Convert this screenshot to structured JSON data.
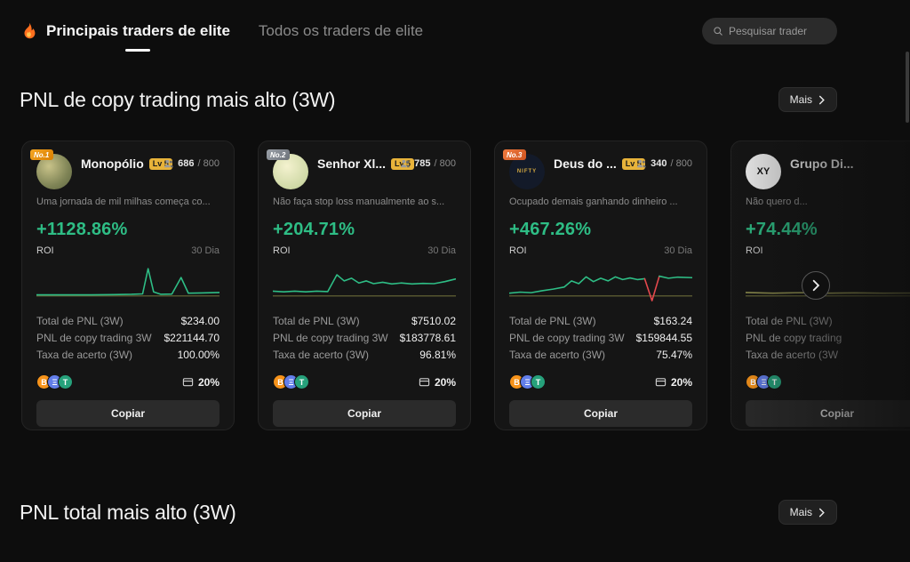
{
  "header": {
    "tabs": [
      {
        "label": "Principais traders de elite",
        "active": true
      },
      {
        "label": "Todos os traders de elite",
        "active": false
      }
    ],
    "search_placeholder": "Pesquisar trader"
  },
  "sections": {
    "top": {
      "title": "PNL de copy trading mais alto (3W)",
      "more": "Mais"
    },
    "bottom": {
      "title": "PNL total mais alto (3W)",
      "more": "Mais"
    }
  },
  "colors": {
    "green": "#2ebd85",
    "red": "#e5484d",
    "gold": "#e8b33a",
    "btc": "#f7931a",
    "eth": "#627eea",
    "usdt": "#26a17b"
  },
  "coins": [
    {
      "name": "btc",
      "symbol": "B"
    },
    {
      "name": "eth",
      "symbol": "Ξ"
    },
    {
      "name": "usdt",
      "symbol": "T"
    }
  ],
  "cards": [
    {
      "rank": "No.1",
      "avatar_text": "",
      "name": "Monopólio",
      "level": "Lv 5",
      "followers_current": "686",
      "followers_suffix": " / 800",
      "bio": "Uma jornada de mil milhas começa co...",
      "roi_value": "+1128.86%",
      "roi_label": "ROI",
      "period": "30 Dia",
      "stats": [
        {
          "label": "Total de PNL (3W)",
          "value": "$234.00"
        },
        {
          "label": "PNL de copy trading 3W",
          "value": "$221144.70"
        },
        {
          "label": "Taxa de acerto (3W)",
          "value": "100.00%"
        }
      ],
      "profit_share": "20%",
      "copy_label": "Copiar",
      "spark": {
        "segments": [
          {
            "color": "#6b6b38",
            "w": 1.1,
            "points": [
              [
                0,
                24
              ],
              [
                100,
                24
              ]
            ]
          },
          {
            "color": "#2ebd85",
            "points": [
              [
                0,
                23.2
              ],
              [
                30,
                23.2
              ],
              [
                42,
                23
              ],
              [
                52,
                22.8
              ],
              [
                58,
                22.5
              ],
              [
                61,
                4
              ],
              [
                64,
                21
              ],
              [
                68,
                22.8
              ],
              [
                74,
                22.6
              ],
              [
                79,
                10.5
              ],
              [
                83,
                22
              ],
              [
                90,
                21.8
              ],
              [
                100,
                21.5
              ]
            ]
          }
        ]
      }
    },
    {
      "rank": "No.2",
      "avatar_text": "",
      "name": "Senhor Xl...",
      "level": "Lv 5",
      "followers_current": "785",
      "followers_suffix": " / 800",
      "bio": "Não faça stop loss manualmente ao s...",
      "roi_value": "+204.71%",
      "roi_label": "ROI",
      "period": "30 Dia",
      "stats": [
        {
          "label": "Total de PNL (3W)",
          "value": "$7510.02"
        },
        {
          "label": "PNL de copy trading 3W",
          "value": "$183778.61"
        },
        {
          "label": "Taxa de acerto (3W)",
          "value": "96.81%"
        }
      ],
      "profit_share": "20%",
      "copy_label": "Copiar",
      "spark": {
        "segments": [
          {
            "color": "#6b6b38",
            "w": 1.1,
            "points": [
              [
                0,
                24
              ],
              [
                100,
                24
              ]
            ]
          },
          {
            "color": "#2ebd85",
            "points": [
              [
                0,
                20.5
              ],
              [
                6,
                21
              ],
              [
                12,
                20.5
              ],
              [
                18,
                21
              ],
              [
                24,
                20.5
              ],
              [
                30,
                20.8
              ],
              [
                35,
                8.5
              ],
              [
                39,
                13
              ],
              [
                43,
                11
              ],
              [
                47,
                14.5
              ],
              [
                51,
                13
              ],
              [
                55,
                15
              ],
              [
                60,
                14
              ],
              [
                65,
                15.2
              ],
              [
                70,
                14.5
              ],
              [
                76,
                15.2
              ],
              [
                82,
                14.8
              ],
              [
                88,
                15
              ],
              [
                94,
                13.5
              ],
              [
                100,
                11.5
              ]
            ]
          }
        ]
      }
    },
    {
      "rank": "No.3",
      "avatar_text": "NIFTY",
      "name": "Deus do ...",
      "level": "Lv 5",
      "followers_current": "340",
      "followers_suffix": " / 800",
      "bio": "Ocupado demais ganhando dinheiro ...",
      "roi_value": "+467.26%",
      "roi_label": "ROI",
      "period": "30 Dia",
      "stats": [
        {
          "label": "Total de PNL (3W)",
          "value": "$163.24"
        },
        {
          "label": "PNL de copy trading 3W",
          "value": "$159844.55"
        },
        {
          "label": "Taxa de acerto (3W)",
          "value": "75.47%"
        }
      ],
      "profit_share": "20%",
      "copy_label": "Copiar",
      "spark": {
        "segments": [
          {
            "color": "#6b6b38",
            "w": 1.1,
            "points": [
              [
                0,
                24
              ],
              [
                100,
                24
              ]
            ]
          },
          {
            "color": "#2ebd85",
            "points": [
              [
                0,
                22
              ],
              [
                6,
                21.2
              ],
              [
                12,
                21.6
              ],
              [
                18,
                20.2
              ],
              [
                24,
                19
              ],
              [
                30,
                17.5
              ],
              [
                34,
                13
              ],
              [
                38,
                15
              ],
              [
                42,
                10
              ],
              [
                46,
                13.5
              ],
              [
                50,
                11
              ],
              [
                54,
                13
              ],
              [
                58,
                10
              ],
              [
                62,
                12
              ],
              [
                66,
                10.8
              ],
              [
                70,
                12
              ],
              [
                74,
                11.4
              ]
            ]
          },
          {
            "color": "#e5484d",
            "points": [
              [
                74,
                11.4
              ],
              [
                78,
                27.5
              ],
              [
                82,
                9.5
              ]
            ]
          },
          {
            "color": "#2ebd85",
            "points": [
              [
                82,
                9.5
              ],
              [
                87,
                11
              ],
              [
                92,
                10.2
              ],
              [
                100,
                10.6
              ]
            ]
          }
        ]
      }
    },
    {
      "rank": "",
      "avatar_text": "XY",
      "name": "Grupo Di...",
      "level": "",
      "followers_current": "",
      "followers_suffix": "",
      "bio": "Não quero d...",
      "roi_value": "+74.44%",
      "roi_label": "ROI",
      "period": "",
      "stats": [
        {
          "label": "Total de PNL (3W)",
          "value": ""
        },
        {
          "label": "PNL de copy trading",
          "value": ""
        },
        {
          "label": "Taxa de acerto (3W",
          "value": ""
        }
      ],
      "profit_share": "",
      "copy_label": "Copiar",
      "spark": {
        "segments": [
          {
            "color": "#6b6b38",
            "w": 1.1,
            "points": [
              [
                0,
                24
              ],
              [
                100,
                24
              ]
            ]
          },
          {
            "color": "#8f8f4f",
            "points": [
              [
                0,
                21.5
              ],
              [
                15,
                22
              ],
              [
                30,
                21.6
              ],
              [
                45,
                22
              ],
              [
                60,
                21.7
              ],
              [
                75,
                22
              ],
              [
                100,
                21.8
              ]
            ]
          }
        ]
      }
    }
  ]
}
